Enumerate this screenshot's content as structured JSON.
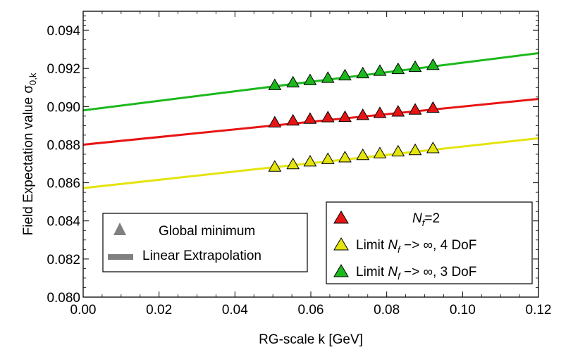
{
  "chart_data": {
    "type": "line",
    "xlabel": "RG-scale k [GeV]",
    "ylabel": "Field Expectation value σ",
    "ylabel_sub": "0,k",
    "xlim": [
      0.0,
      0.12
    ],
    "ylim": [
      0.08,
      0.095
    ],
    "xticks": [
      "0.00",
      "0.02",
      "0.04",
      "0.06",
      "0.08",
      "0.10",
      "0.12"
    ],
    "yticks": [
      "0.080",
      "0.082",
      "0.084",
      "0.086",
      "0.088",
      "0.090",
      "0.092",
      "0.094"
    ],
    "series": [
      {
        "key": "green",
        "color": "#1cb81c",
        "line": {
          "intercept": 0.0898,
          "slope": 0.025
        },
        "points": [
          [
            0.0505,
            0.09112
          ],
          [
            0.0553,
            0.09126
          ],
          [
            0.0598,
            0.09138
          ],
          [
            0.0645,
            0.0915
          ],
          [
            0.069,
            0.09163
          ],
          [
            0.0737,
            0.09174
          ],
          [
            0.0782,
            0.09187
          ],
          [
            0.083,
            0.09196
          ],
          [
            0.0875,
            0.09207
          ],
          [
            0.0922,
            0.09218
          ]
        ]
      },
      {
        "key": "red",
        "color": "#e81414",
        "line": {
          "intercept": 0.088,
          "slope": 0.02
        },
        "points": [
          [
            0.0505,
            0.08916
          ],
          [
            0.0553,
            0.08926
          ],
          [
            0.0598,
            0.08935
          ],
          [
            0.0645,
            0.08943
          ],
          [
            0.069,
            0.08945
          ],
          [
            0.0737,
            0.08955
          ],
          [
            0.0782,
            0.08965
          ],
          [
            0.083,
            0.08973
          ],
          [
            0.0875,
            0.08983
          ],
          [
            0.0922,
            0.08993
          ]
        ]
      },
      {
        "key": "yellow",
        "color": "#e4e40e",
        "line": {
          "intercept": 0.08572,
          "slope": 0.0218
        },
        "points": [
          [
            0.0505,
            0.08684
          ],
          [
            0.0553,
            0.08697
          ],
          [
            0.0598,
            0.08711
          ],
          [
            0.0645,
            0.08724
          ],
          [
            0.069,
            0.08733
          ],
          [
            0.0737,
            0.08745
          ],
          [
            0.0782,
            0.08754
          ],
          [
            0.083,
            0.08764
          ],
          [
            0.0875,
            0.08771
          ],
          [
            0.0922,
            0.08781
          ]
        ]
      }
    ],
    "legend_left": {
      "placement": "bottom-left",
      "marker_label": "Global minimum",
      "line_label": "Linear Extrapolation"
    },
    "legend_right": {
      "placement": "bottom-right",
      "entries": [
        {
          "color": "#e81414",
          "pre": "",
          "sym": "N",
          "sub": "f",
          "post": "=2"
        },
        {
          "color": "#e4e40e",
          "pre": "Limit ",
          "sym": "N",
          "sub": "f",
          "post": " −> ∞, 4 DoF"
        },
        {
          "color": "#1cb81c",
          "pre": "Limit ",
          "sym": "N",
          "sub": "f",
          "post": " −> ∞, 3 DoF"
        }
      ]
    }
  }
}
